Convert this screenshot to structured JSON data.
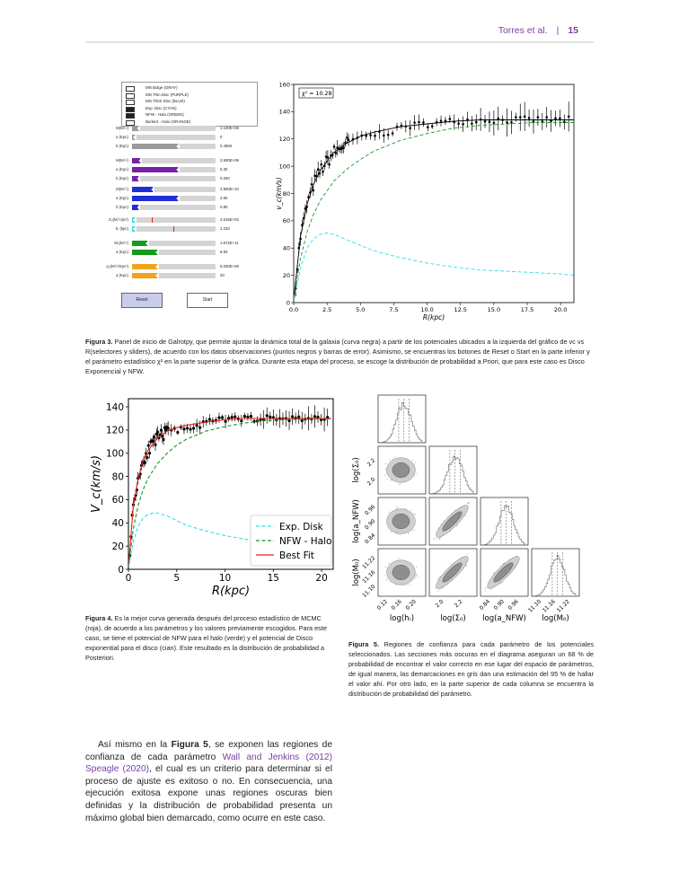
{
  "header": {
    "authors": "Torres et al.",
    "separator": "|",
    "page": "15"
  },
  "ui_panel": {
    "legend": [
      "MN Bulge (GRAY)",
      "MN Thin Disc (PURPLE)",
      "MN Thick Disc (BLUE)",
      "Exp. Disc (CYAN)",
      "NFW - Halo (GREEN)",
      "Burkert - Halo (ORANGE)"
    ],
    "groups": [
      {
        "color": "#9a9a9a",
        "rows": [
          {
            "label": "M(M☉)",
            "value": "1.100E+08",
            "fill": 0.08
          },
          {
            "label": "a (Kpc)",
            "value": "0",
            "fill": 0.0
          },
          {
            "label": "b (Kpc)",
            "value": "0.4950",
            "fill": 0.55
          }
        ]
      },
      {
        "color": "#7a1fa2",
        "rows": [
          {
            "label": "M(M☉)",
            "value": "3.900E+09",
            "fill": 0.1
          },
          {
            "label": "a (Kpc)",
            "value": "5.30",
            "fill": 0.55
          },
          {
            "label": "b (Kpc)",
            "value": "0.250",
            "fill": 0.08
          }
        ]
      },
      {
        "color": "#1f2fd6",
        "rows": [
          {
            "label": "M(M☉)",
            "value": "3.900E+10",
            "fill": 0.25
          },
          {
            "label": "a (Kpc)",
            "value": "2.60",
            "fill": 0.55
          },
          {
            "label": "b (Kpc)",
            "value": "0.80",
            "fill": 0.08
          }
        ]
      },
      {
        "color": "#33dde6",
        "rows": [
          {
            "label": "Σ₀(M☉/pc²)",
            "value": "2.015E+02",
            "fill": 0.02
          },
          {
            "label": "hᵣ (kpc)",
            "value": "1.232",
            "fill": 0.02
          }
        ]
      },
      {
        "color": "#159a1c",
        "rows": [
          {
            "label": "M₀(M☉)",
            "value": "1.672E+11",
            "fill": 0.18
          },
          {
            "label": "a (Kpc)",
            "value": "8.93",
            "fill": 0.3
          }
        ]
      },
      {
        "color": "#f3a21b",
        "rows": [
          {
            "label": "ρ₀(M☉/Kpc³)",
            "value": "8.000E+06",
            "fill": 0.3
          },
          {
            "label": "a (Kpc)",
            "value": "20",
            "fill": 0.3
          }
        ]
      }
    ],
    "reset_label": "Reset",
    "start_label": "Start"
  },
  "chart_data": [
    {
      "type": "line",
      "annotation": "χ² = 10.28",
      "xlabel": "R(kpc)",
      "ylabel": "v_c(km/s)",
      "xlim": [
        0,
        21
      ],
      "ylim": [
        0,
        160
      ],
      "xticks": [
        0.0,
        2.5,
        5.0,
        7.5,
        10.0,
        12.5,
        15.0,
        17.5,
        20.0
      ],
      "yticks": [
        0,
        20,
        40,
        60,
        80,
        100,
        120,
        140,
        160
      ],
      "series": [
        {
          "color": "#33dde6",
          "style": "dashed",
          "x": [
            0.05,
            0.5,
            1,
            1.5,
            2,
            2.5,
            3,
            4,
            5,
            6,
            8,
            10,
            12,
            14,
            16,
            18,
            20,
            21
          ],
          "y": [
            3,
            25,
            40,
            47,
            50,
            51,
            50,
            46,
            42,
            38,
            33,
            29,
            26,
            24,
            23,
            22,
            21,
            20
          ]
        },
        {
          "color": "#159a1c",
          "style": "dashed",
          "x": [
            0.05,
            0.5,
            1,
            1.5,
            2,
            3,
            4,
            5,
            6,
            8,
            10,
            12,
            14,
            16,
            18,
            20,
            21
          ],
          "y": [
            5,
            32,
            52,
            65,
            75,
            89,
            98,
            105,
            111,
            119,
            124,
            128,
            130,
            131,
            132,
            132,
            132
          ]
        },
        {
          "color": "#000000",
          "style": "solid",
          "x": [
            0.05,
            0.5,
            1,
            1.5,
            2,
            3,
            4,
            5,
            6,
            8,
            10,
            12,
            14,
            16,
            18,
            20,
            21
          ],
          "y": [
            6,
            48,
            72,
            87,
            97,
            110,
            117,
            122,
            125,
            129,
            131,
            133,
            134,
            134,
            134,
            134,
            134
          ]
        }
      ]
    },
    {
      "type": "line",
      "xlabel": "R(kpc)",
      "ylabel": "V_c(km/s)",
      "xlim": [
        0,
        21.2
      ],
      "ylim": [
        0,
        147
      ],
      "xticks": [
        0,
        5,
        10,
        15,
        20
      ],
      "yticks": [
        0,
        20,
        40,
        60,
        80,
        100,
        120,
        140
      ],
      "legend_position": "lower-right",
      "series": [
        {
          "name": "Exp. Disk",
          "color": "#33dde6",
          "style": "dashed",
          "x": [
            0.05,
            0.5,
            1,
            1.5,
            2,
            2.5,
            3,
            4,
            5,
            6,
            8,
            10,
            12,
            14,
            16,
            18,
            20,
            21
          ],
          "y": [
            3,
            24,
            37,
            44,
            47,
            48.5,
            48.5,
            46,
            42,
            38,
            33,
            29,
            26,
            24,
            22,
            21,
            20,
            19.5
          ]
        },
        {
          "name": "NFW - Halo",
          "color": "#159a1c",
          "style": "dashed",
          "x": [
            0.05,
            0.5,
            1,
            1.5,
            2,
            3,
            4,
            5,
            6,
            8,
            10,
            12,
            14,
            16,
            18,
            20,
            21
          ],
          "y": [
            5,
            35,
            55,
            68,
            78,
            91,
            100,
            107,
            112,
            119,
            123,
            126,
            128,
            129,
            129.5,
            129.5,
            129.5
          ]
        },
        {
          "name": "Best Fit",
          "color": "#e8211d",
          "style": "solid",
          "x": [
            0.05,
            0.5,
            1,
            1.5,
            2,
            3,
            4,
            5,
            6,
            8,
            10,
            12,
            14,
            16,
            18,
            20,
            21
          ],
          "y": [
            6,
            55,
            78,
            93,
            102,
            113,
            119,
            122,
            124,
            127,
            129,
            130,
            130,
            130,
            130,
            130,
            130
          ]
        }
      ]
    },
    {
      "type": "corner",
      "x_labels": [
        "log(hᵣ)",
        "log(Σ₀)",
        "log(a_NFW)",
        "log(M₀)"
      ],
      "y_labels": [
        "log(Σ₀)",
        "log(a_NFW)",
        "log(M₀)"
      ],
      "x_ticks": [
        [
          "0.12",
          "0.16",
          "0.20"
        ],
        [
          "2.0",
          "2.2"
        ],
        [
          "0.84",
          "0.90",
          "0.96"
        ],
        [
          "11.10",
          "11.16",
          "11.22"
        ]
      ],
      "y_ticks": [
        [
          "2.0",
          "2.2"
        ],
        [
          "0.84",
          "0.90",
          "0.96"
        ],
        [
          "11.10",
          "11.16",
          "11.22"
        ]
      ]
    }
  ],
  "captions": {
    "fig3": {
      "label": "Figura 3.",
      "text": "Panel de inicio de Galrotpy, que permite ajustar la dinámica total de la galaxia (curva negra) a partir de los potenciales ubicados a la izquierda del gráfico de vᴄ vs R(selectores y sliders), de acuerdo con los datos observaciones (puntos negros y barras de error). Asimismo, se encuentras los botones de Reset o Start en la parte inferior y el parámetro estadístico χ² en la parte superior de la gráfica. Durante esta etapa del proceso, se escoge la distribución de probabilidad a Priori, que para este caso es Disco Exponencial y NFW."
    },
    "fig4": {
      "label": "Figura 4.",
      "text": "Es la mejor curva generada después del proceso estadístico de MCMC (roja), de acuerdo a los parámetros y los valores previamente escogidos. Para este caso, se tiene el potencial de NFW para el halo (verde) y el potencial de Disco exponential para el disco (cian). Este resultado es la distribución de probabilidad a Posteriori."
    },
    "fig5": {
      "label": "Figura 5.",
      "text": "Regiones de confianza para cada parámetro de los potenciales seleccionados. Las secciones más oscuras en el diagrama aseguran un 68 % de probabilidad de encontrar el valor correcto en ese lugar del espacio de parámetros, de igual manera, las demarcaciones en gris dan una estimación del 95 % de hallar el valor ahí. Por otro lado, en la parte superior de cada columna se encuentra la distribución de probabilidad del parámetro."
    }
  },
  "paragraph": {
    "p1": "Así mismo en la ",
    "fig_ref": "Figura 5",
    "p2": ", se exponen las regiones de confianza de cada parámetro ",
    "cite1": "Wall and Jenkins",
    "cite1_year": "2012",
    "cite2": "Speagle",
    "cite2_year": "2020",
    "p3": ", el cual es un criterio para determinar si el proceso de ajuste es exitoso o no. En consecuencia, una ejecución exitosa expone unas regiones oscuras bien definidas y la distribución de probabilidad presenta un máximo global bien demarcado, como ocurre en este caso."
  }
}
